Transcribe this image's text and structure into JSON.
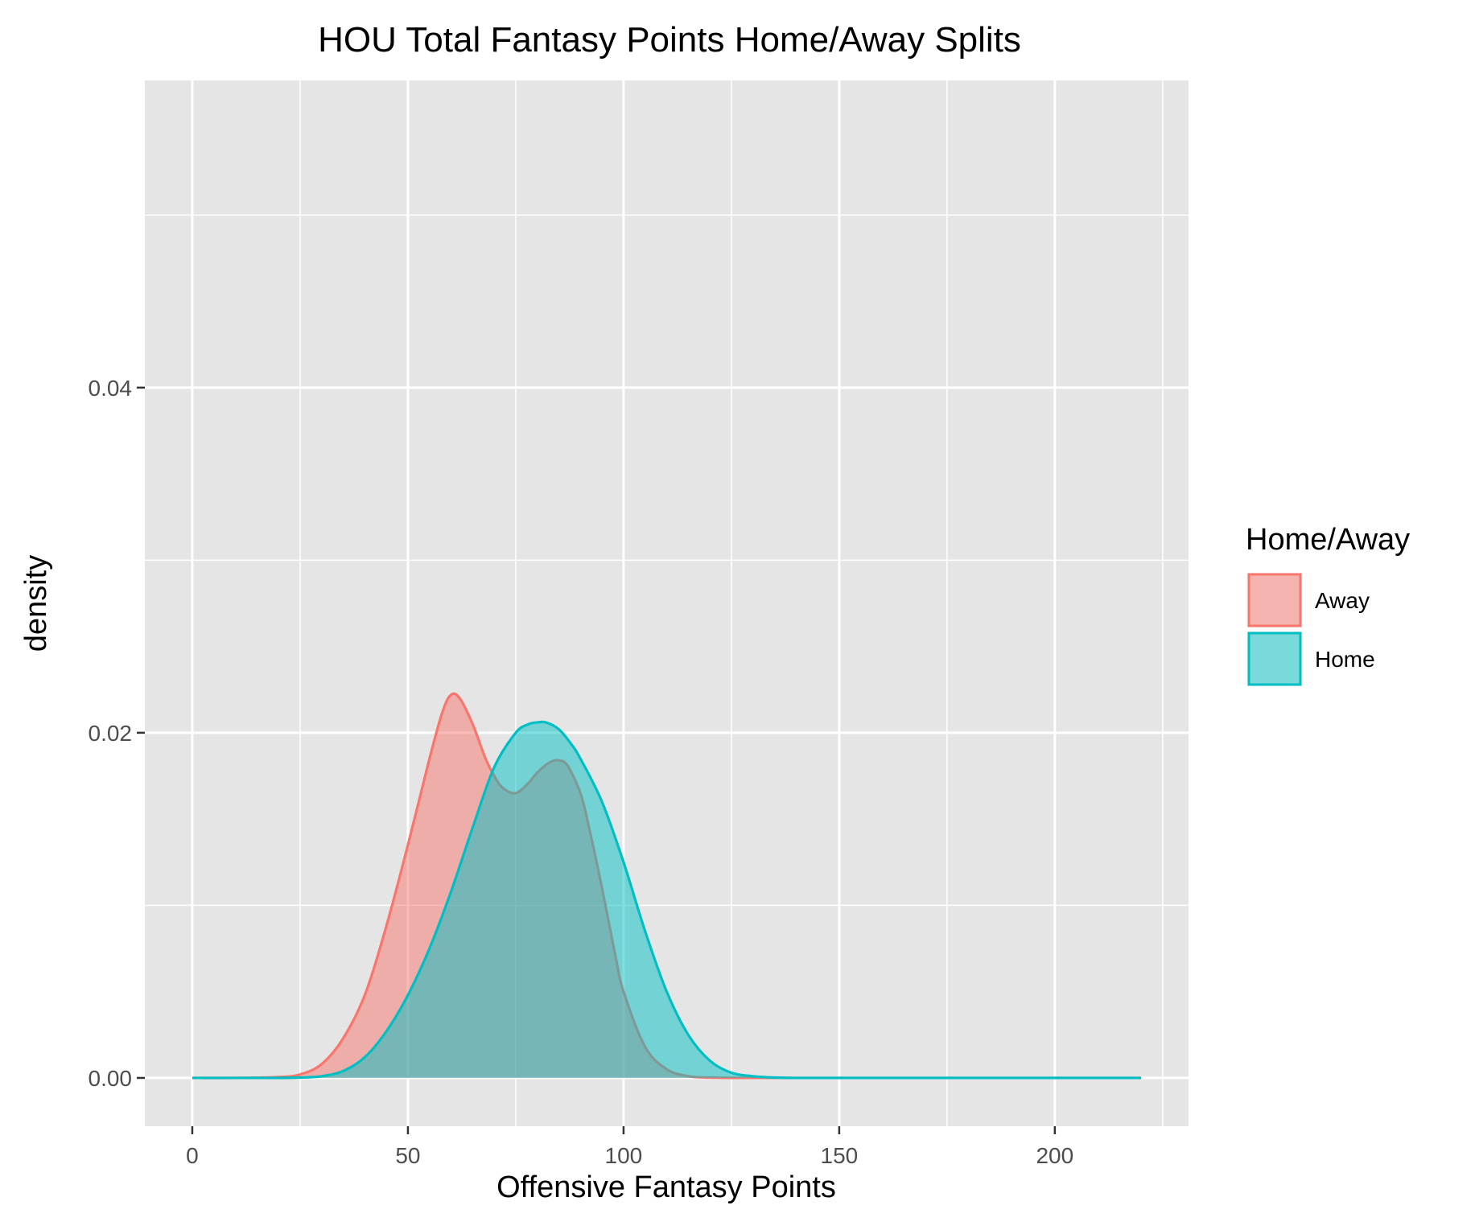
{
  "chart_data": {
    "type": "area",
    "title": "HOU Total Fantasy Points Home/Away Splits",
    "xlabel": "Offensive Fantasy Points",
    "ylabel": "density",
    "xlim": [
      -11,
      231
    ],
    "ylim": [
      -0.0028,
      0.0578
    ],
    "x_ticks": [
      0,
      50,
      100,
      150,
      200
    ],
    "x_tick_labels": [
      "0",
      "50",
      "100",
      "150",
      "200"
    ],
    "y_ticks": [
      0.0,
      0.02,
      0.04
    ],
    "y_tick_labels": [
      "0.00",
      "0.02",
      "0.04"
    ],
    "grid": true,
    "legend": {
      "title": "Home/Away",
      "position": "right"
    },
    "series": [
      {
        "name": "Away",
        "color": "#F8766D",
        "fill": "#F8766D",
        "x": [
          0,
          10,
          20,
          25,
          30,
          35,
          40,
          45,
          50,
          55,
          58,
          60,
          62,
          65,
          68,
          70,
          72,
          75,
          78,
          80,
          83,
          85,
          87,
          90,
          92,
          95,
          98,
          100,
          105,
          110,
          115,
          120,
          130,
          150,
          175,
          200,
          220
        ],
        "y": [
          0.0,
          0.0,
          5e-05,
          0.0002,
          0.0008,
          0.0023,
          0.0048,
          0.0088,
          0.0135,
          0.0185,
          0.0212,
          0.0222,
          0.022,
          0.0205,
          0.0185,
          0.0175,
          0.0168,
          0.0165,
          0.0171,
          0.0177,
          0.0183,
          0.0184,
          0.0181,
          0.0165,
          0.0145,
          0.011,
          0.0072,
          0.005,
          0.0018,
          0.0005,
          0.0001,
          2e-05,
          0.0,
          0.0,
          0.0,
          0.0,
          0.0
        ]
      },
      {
        "name": "Home",
        "color": "#00BFC4",
        "fill": "#00BFC4",
        "x": [
          0,
          10,
          20,
          25,
          30,
          35,
          40,
          45,
          50,
          55,
          60,
          65,
          70,
          75,
          78,
          80,
          82,
          85,
          88,
          90,
          95,
          100,
          105,
          110,
          115,
          120,
          125,
          130,
          135,
          140,
          150,
          175,
          200,
          220
        ],
        "y": [
          0.0,
          0.0,
          0.0,
          2e-05,
          0.0001,
          0.0004,
          0.0012,
          0.0027,
          0.0048,
          0.0075,
          0.0108,
          0.0145,
          0.018,
          0.02,
          0.0205,
          0.0206,
          0.0206,
          0.0202,
          0.0193,
          0.0185,
          0.016,
          0.0125,
          0.0085,
          0.005,
          0.0025,
          0.001,
          0.0003,
          0.0001,
          2e-05,
          0.0,
          0.0,
          0.0,
          0.0,
          0.0
        ]
      }
    ]
  }
}
